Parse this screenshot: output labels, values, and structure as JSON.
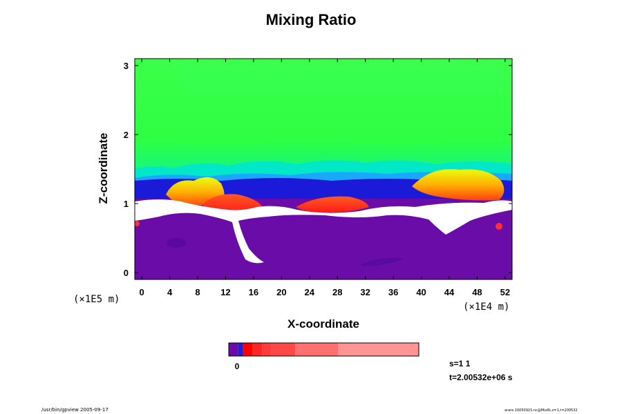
{
  "figure": {
    "title": "Mixing Ratio",
    "x_label": "X-coordinate",
    "y_label": "Z-coordinate",
    "x_scale_note": "(×1E4 m)",
    "y_scale_note": "(×1E5 m)",
    "step_text": "s=1 1",
    "time_text": "t=2.00532e+06 s",
    "footer_left": "/usr/bin/gpview 2005-09-17",
    "footer_right": "arare 20050915.nc@MixRt,x=1,t=200532"
  },
  "colorbar": {
    "zero_label": "0",
    "segments": [
      {
        "color": "#6a0ca8",
        "weight": 2
      },
      {
        "color": "#1f1fd8",
        "weight": 1
      },
      {
        "color": "#ff0000",
        "weight": 2
      },
      {
        "color": "#ff2626",
        "weight": 2
      },
      {
        "color": "#ff3b3b",
        "weight": 2
      },
      {
        "color": "#ff4848",
        "weight": 5
      },
      {
        "color": "#ff7070",
        "weight": 9
      },
      {
        "color": "#ff9494",
        "weight": 17
      }
    ]
  },
  "chart_data": {
    "type": "heatmap",
    "title": "Mixing Ratio",
    "xlabel": "X-coordinate",
    "ylabel": "Z-coordinate",
    "x_unit_label": "(×1E4 m)",
    "y_unit_label": "(×1E5 m)",
    "xlim": [
      -1,
      53
    ],
    "ylim": [
      -0.1,
      3.1
    ],
    "x_ticks": [
      0,
      4,
      8,
      12,
      16,
      20,
      24,
      28,
      32,
      36,
      40,
      44,
      48,
      52
    ],
    "y_ticks": [
      0,
      1,
      2,
      3
    ],
    "x_tick_labels": [
      "0",
      "4",
      "8",
      "12",
      "16",
      "20",
      "24",
      "28",
      "32",
      "36",
      "40",
      "44",
      "48",
      "52"
    ],
    "y_tick_labels": [
      "0",
      "1",
      "2",
      "3"
    ],
    "colormap": [
      "#6a0ca8",
      "#1f1fd8",
      "#1e5cf0",
      "#00c8ff",
      "#00f0a0",
      "#28ff40",
      "#d8ff00",
      "#ffd200",
      "#ff8800",
      "#ff2020"
    ],
    "regions": [
      {
        "name": "upper-layer",
        "color": "#33ff44",
        "x": [
          -1,
          53
        ],
        "z": [
          1.7,
          3.1
        ]
      },
      {
        "name": "transition-cyan",
        "color": "#00f0b0",
        "x": [
          -1,
          53
        ],
        "z": [
          1.4,
          1.7
        ]
      },
      {
        "name": "dense-band",
        "color": "#1a1ad8",
        "x": [
          -1,
          53
        ],
        "z": [
          1.15,
          1.4
        ]
      },
      {
        "name": "lower-layer",
        "color": "#6a0ca8",
        "x": [
          -1,
          53
        ],
        "z": [
          -0.1,
          1.0
        ]
      },
      {
        "name": "white-gap",
        "color": "#ffffff",
        "x": [
          -1,
          53
        ],
        "z": [
          0.95,
          1.08
        ]
      },
      {
        "name": "red-patch-1",
        "color": "#ff2020",
        "x": [
          6,
          18
        ],
        "z": [
          0.9,
          1.2
        ]
      },
      {
        "name": "red-patch-2",
        "color": "#ff2020",
        "x": [
          22,
          33
        ],
        "z": [
          0.88,
          1.12
        ]
      },
      {
        "name": "yellow-plume-1",
        "color": "#ffd200",
        "x": [
          5,
          14
        ],
        "z": [
          1.1,
          1.5
        ]
      },
      {
        "name": "yellow-plume-2",
        "color": "#ffd200",
        "x": [
          38,
          50
        ],
        "z": [
          1.15,
          1.6
        ]
      }
    ]
  }
}
